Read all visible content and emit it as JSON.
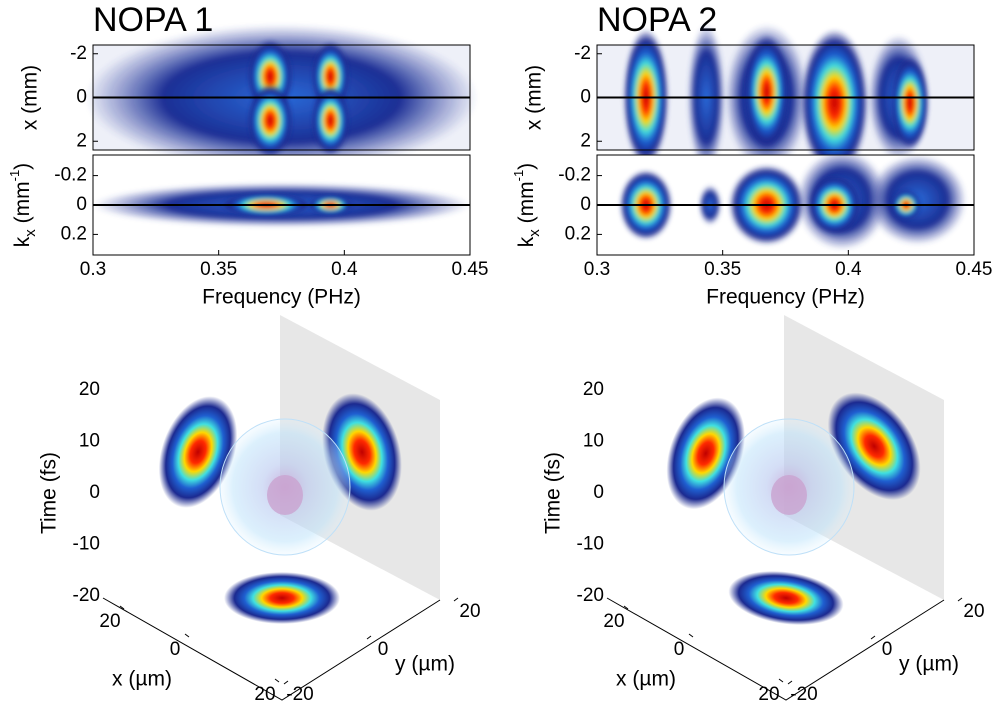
{
  "panels": [
    {
      "title": "NOPA 1",
      "spectrum": {
        "ylabel": "x (mm)",
        "ylim": [
          -2.4,
          2.4
        ],
        "yticks": [
          -2,
          0,
          2
        ]
      },
      "divergence": {
        "ylabel": [
          "k",
          "x",
          " (mm",
          "-1",
          ")"
        ],
        "ylim": [
          -0.34,
          0.34
        ],
        "yticks": [
          -0.2,
          0,
          0.2
        ]
      },
      "xlabel": "Frequency (PHz)",
      "xlim": [
        0.3,
        0.45
      ],
      "xticks": [
        0.3,
        0.35,
        0.4,
        0.45
      ],
      "volume": {
        "zlabel": "Time (fs)",
        "zlim": [
          -20,
          20
        ],
        "zticks": [
          20,
          10,
          0,
          -10,
          -20
        ],
        "xlabel": "x (µm)",
        "xticks": [
          20,
          0,
          20
        ],
        "ylabel": "y (µm)",
        "yticks": [
          20,
          0,
          -20
        ]
      }
    },
    {
      "title": "NOPA 2",
      "spectrum": {
        "ylabel": "x (mm)",
        "ylim": [
          -2.4,
          2.4
        ],
        "yticks": [
          -2,
          0,
          2
        ]
      },
      "divergence": {
        "ylabel": [
          "k",
          "x",
          " (mm",
          "-1",
          ")"
        ],
        "ylim": [
          -0.34,
          0.34
        ],
        "yticks": [
          -0.2,
          0,
          0.2
        ]
      },
      "xlabel": "Frequency (PHz)",
      "xlim": [
        0.3,
        0.45
      ],
      "xticks": [
        0.3,
        0.35,
        0.4,
        0.45
      ],
      "volume": {
        "zlabel": "Time (fs)",
        "zlim": [
          -20,
          20
        ],
        "zticks": [
          20,
          10,
          0,
          -10,
          -20
        ],
        "xlabel": "x (µm)",
        "xticks": [
          20,
          0,
          20
        ],
        "ylabel": "y (µm)",
        "yticks": [
          20,
          0,
          -20
        ]
      }
    }
  ]
}
